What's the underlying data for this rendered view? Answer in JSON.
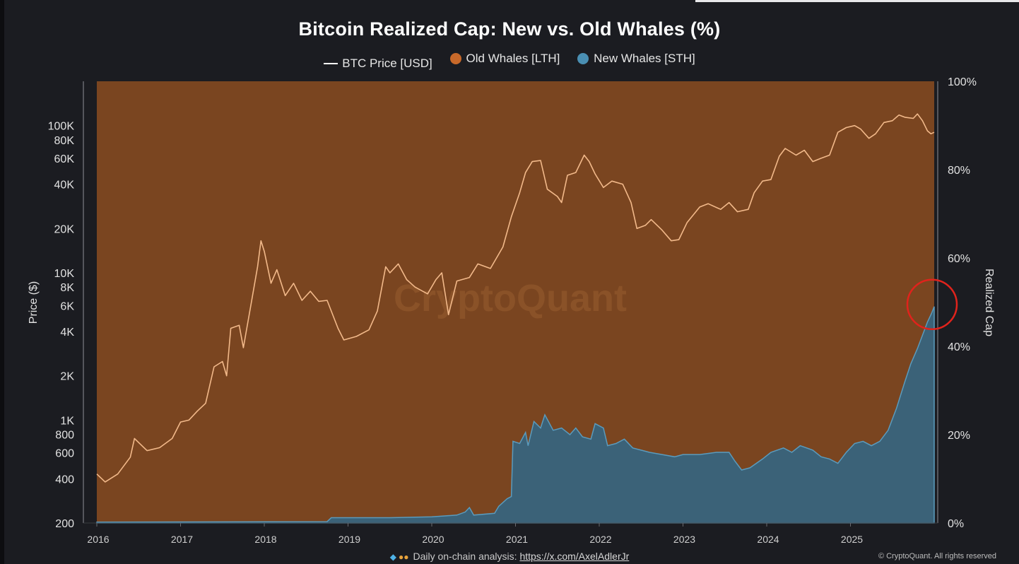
{
  "chart_data": {
    "type": "area",
    "title": "Bitcoin Realized Cap: New vs. Old Whales (%)",
    "legend": [
      {
        "name": "BTC Price [USD]",
        "color": "#ffffff",
        "kind": "line"
      },
      {
        "name": "Old Whales [LTH]",
        "color": "#c8692a",
        "kind": "dot"
      },
      {
        "name": "New Whales [STH]",
        "color": "#4a8fb3",
        "kind": "dot"
      }
    ],
    "watermark": "CryptoQuant",
    "xlabel": "",
    "x_ticks": [
      "2016",
      "2017",
      "2018",
      "2019",
      "2020",
      "2021",
      "2022",
      "2023",
      "2024",
      "2025"
    ],
    "y_left": {
      "label": "Price ($)",
      "scale": "log",
      "range": [
        200,
        200000
      ],
      "ticks": [
        {
          "v": 200,
          "t": "200"
        },
        {
          "v": 400,
          "t": "400"
        },
        {
          "v": 600,
          "t": "600"
        },
        {
          "v": 800,
          "t": "800"
        },
        {
          "v": 1000,
          "t": "1K"
        },
        {
          "v": 2000,
          "t": "2K"
        },
        {
          "v": 4000,
          "t": "4K"
        },
        {
          "v": 6000,
          "t": "6K"
        },
        {
          "v": 8000,
          "t": "8K"
        },
        {
          "v": 10000,
          "t": "10K"
        },
        {
          "v": 20000,
          "t": "20K"
        },
        {
          "v": 40000,
          "t": "40K"
        },
        {
          "v": 60000,
          "t": "60K"
        },
        {
          "v": 80000,
          "t": "80K"
        },
        {
          "v": 100000,
          "t": "100K"
        }
      ]
    },
    "y_right": {
      "label": "Realized Cap",
      "range": [
        0,
        100
      ],
      "ticks": [
        {
          "v": 0,
          "t": "0%"
        },
        {
          "v": 20,
          "t": "20%"
        },
        {
          "v": 40,
          "t": "40%"
        },
        {
          "v": 60,
          "t": "60%"
        },
        {
          "v": 80,
          "t": "80%"
        },
        {
          "v": 100,
          "t": "100%"
        }
      ]
    },
    "x_range": [
      2016.0,
      2026.0
    ],
    "series": [
      {
        "name": "BTC Price [USD]",
        "axis": "left",
        "points": [
          [
            2016.0,
            430
          ],
          [
            2016.1,
            380
          ],
          [
            2016.25,
            430
          ],
          [
            2016.4,
            560
          ],
          [
            2016.45,
            750
          ],
          [
            2016.6,
            620
          ],
          [
            2016.75,
            650
          ],
          [
            2016.9,
            750
          ],
          [
            2017.0,
            970
          ],
          [
            2017.1,
            1000
          ],
          [
            2017.2,
            1150
          ],
          [
            2017.3,
            1300
          ],
          [
            2017.4,
            2300
          ],
          [
            2017.5,
            2500
          ],
          [
            2017.55,
            2000
          ],
          [
            2017.6,
            4200
          ],
          [
            2017.7,
            4400
          ],
          [
            2017.75,
            3100
          ],
          [
            2017.85,
            6500
          ],
          [
            2017.92,
            11000
          ],
          [
            2017.96,
            16500
          ],
          [
            2018.0,
            14000
          ],
          [
            2018.08,
            8500
          ],
          [
            2018.15,
            10500
          ],
          [
            2018.25,
            7000
          ],
          [
            2018.35,
            8500
          ],
          [
            2018.45,
            6500
          ],
          [
            2018.55,
            7500
          ],
          [
            2018.65,
            6400
          ],
          [
            2018.75,
            6500
          ],
          [
            2018.88,
            4200
          ],
          [
            2018.95,
            3500
          ],
          [
            2019.1,
            3700
          ],
          [
            2019.25,
            4100
          ],
          [
            2019.35,
            5500
          ],
          [
            2019.45,
            11000
          ],
          [
            2019.5,
            10000
          ],
          [
            2019.6,
            11500
          ],
          [
            2019.7,
            9000
          ],
          [
            2019.8,
            8000
          ],
          [
            2019.95,
            7200
          ],
          [
            2020.05,
            9000
          ],
          [
            2020.12,
            10000
          ],
          [
            2020.2,
            5200
          ],
          [
            2020.3,
            8800
          ],
          [
            2020.45,
            9300
          ],
          [
            2020.55,
            11500
          ],
          [
            2020.7,
            10700
          ],
          [
            2020.85,
            15000
          ],
          [
            2020.95,
            24000
          ],
          [
            2021.05,
            35000
          ],
          [
            2021.12,
            48000
          ],
          [
            2021.2,
            57000
          ],
          [
            2021.3,
            58000
          ],
          [
            2021.38,
            37000
          ],
          [
            2021.5,
            33000
          ],
          [
            2021.55,
            30000
          ],
          [
            2021.62,
            46000
          ],
          [
            2021.72,
            48000
          ],
          [
            2021.82,
            63000
          ],
          [
            2021.88,
            57000
          ],
          [
            2021.95,
            47000
          ],
          [
            2022.05,
            38000
          ],
          [
            2022.15,
            42000
          ],
          [
            2022.28,
            40000
          ],
          [
            2022.38,
            30000
          ],
          [
            2022.45,
            20000
          ],
          [
            2022.55,
            21000
          ],
          [
            2022.62,
            23000
          ],
          [
            2022.75,
            19500
          ],
          [
            2022.86,
            16500
          ],
          [
            2022.95,
            16800
          ],
          [
            2023.05,
            22000
          ],
          [
            2023.2,
            28000
          ],
          [
            2023.3,
            29500
          ],
          [
            2023.45,
            27000
          ],
          [
            2023.55,
            30000
          ],
          [
            2023.65,
            26000
          ],
          [
            2023.78,
            27000
          ],
          [
            2023.85,
            35000
          ],
          [
            2023.95,
            42000
          ],
          [
            2024.05,
            43000
          ],
          [
            2024.15,
            62000
          ],
          [
            2024.22,
            70000
          ],
          [
            2024.35,
            63000
          ],
          [
            2024.45,
            68000
          ],
          [
            2024.55,
            57000
          ],
          [
            2024.65,
            60000
          ],
          [
            2024.75,
            63000
          ],
          [
            2024.85,
            90000
          ],
          [
            2024.95,
            97000
          ],
          [
            2025.05,
            100000
          ],
          [
            2025.12,
            95000
          ],
          [
            2025.22,
            82000
          ],
          [
            2025.3,
            88000
          ],
          [
            2025.4,
            105000
          ],
          [
            2025.5,
            108000
          ],
          [
            2025.58,
            118000
          ],
          [
            2025.65,
            114000
          ],
          [
            2025.75,
            112000
          ],
          [
            2025.8,
            120000
          ],
          [
            2025.86,
            108000
          ],
          [
            2025.92,
            92000
          ],
          [
            2025.96,
            88000
          ],
          [
            2026.0,
            90000
          ]
        ]
      },
      {
        "name": "New Whales [STH]",
        "axis": "right",
        "points": [
          [
            2016.0,
            0.2
          ],
          [
            2018.75,
            0.3
          ],
          [
            2018.8,
            1.2
          ],
          [
            2019.5,
            1.2
          ],
          [
            2020.0,
            1.4
          ],
          [
            2020.3,
            1.8
          ],
          [
            2020.4,
            2.5
          ],
          [
            2020.45,
            3.5
          ],
          [
            2020.5,
            1.8
          ],
          [
            2020.75,
            2.2
          ],
          [
            2020.8,
            3.8
          ],
          [
            2020.9,
            5.5
          ],
          [
            2020.95,
            6.0
          ],
          [
            2020.97,
            18.5
          ],
          [
            2021.05,
            18.0
          ],
          [
            2021.12,
            20.5
          ],
          [
            2021.15,
            17.5
          ],
          [
            2021.22,
            23.0
          ],
          [
            2021.3,
            21.5
          ],
          [
            2021.35,
            24.5
          ],
          [
            2021.45,
            21.0
          ],
          [
            2021.55,
            21.5
          ],
          [
            2021.65,
            20.0
          ],
          [
            2021.72,
            21.5
          ],
          [
            2021.8,
            19.5
          ],
          [
            2021.9,
            19.0
          ],
          [
            2021.95,
            22.5
          ],
          [
            2022.05,
            21.5
          ],
          [
            2022.1,
            17.5
          ],
          [
            2022.2,
            18.0
          ],
          [
            2022.3,
            19.0
          ],
          [
            2022.4,
            17.0
          ],
          [
            2022.5,
            16.5
          ],
          [
            2022.6,
            16.0
          ],
          [
            2022.75,
            15.5
          ],
          [
            2022.9,
            15.0
          ],
          [
            2023.0,
            15.5
          ],
          [
            2023.2,
            15.5
          ],
          [
            2023.4,
            16.0
          ],
          [
            2023.55,
            16.0
          ],
          [
            2023.62,
            14.0
          ],
          [
            2023.7,
            12.0
          ],
          [
            2023.8,
            12.5
          ],
          [
            2023.95,
            14.5
          ],
          [
            2024.05,
            16.0
          ],
          [
            2024.2,
            17.0
          ],
          [
            2024.3,
            16.0
          ],
          [
            2024.4,
            17.5
          ],
          [
            2024.55,
            16.5
          ],
          [
            2024.65,
            15.0
          ],
          [
            2024.75,
            14.5
          ],
          [
            2024.85,
            13.5
          ],
          [
            2024.95,
            16.0
          ],
          [
            2025.05,
            18.0
          ],
          [
            2025.15,
            18.5
          ],
          [
            2025.25,
            17.5
          ],
          [
            2025.35,
            18.5
          ],
          [
            2025.45,
            21.0
          ],
          [
            2025.55,
            26.0
          ],
          [
            2025.65,
            32.0
          ],
          [
            2025.72,
            36.0
          ],
          [
            2025.8,
            39.5
          ],
          [
            2025.86,
            42.5
          ],
          [
            2025.92,
            45.5
          ],
          [
            2025.97,
            47.5
          ],
          [
            2026.0,
            49.0
          ]
        ]
      }
    ],
    "annotations": [
      {
        "type": "circle",
        "label": "highlight",
        "x": 2026.0,
        "y_pct": 49
      }
    ]
  },
  "footer": {
    "text": "Daily on-chain analysis: ",
    "link": "https://x.com/AxelAdlerJr",
    "copyright": "© CryptoQuant. All rights reserved"
  }
}
